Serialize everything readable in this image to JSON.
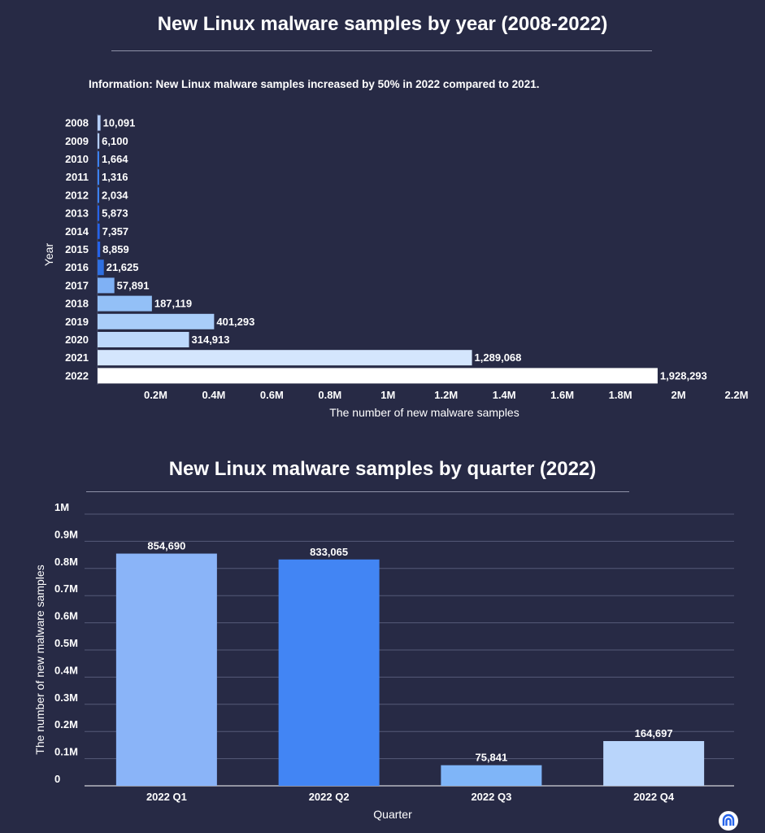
{
  "header": {
    "title": "New Linux malware samples by year (2008-2022)",
    "info": "Information: New Linux malware samples increased by 50% in  2022 compared to 2021."
  },
  "quarter_header": {
    "title": "New Linux malware samples by quarter (2022)"
  },
  "colors": {
    "background": "#272a45",
    "gridline": "#565a78"
  },
  "logo": {
    "icon": "brand-logo-icon"
  },
  "chart_data": [
    {
      "type": "bar",
      "orientation": "horizontal",
      "title": "New Linux malware samples by year (2008-2022)",
      "xlabel": "The number of new malware samples",
      "ylabel": "Year",
      "categories": [
        "2008",
        "2009",
        "2010",
        "2011",
        "2012",
        "2013",
        "2014",
        "2015",
        "2016",
        "2017",
        "2018",
        "2019",
        "2020",
        "2021",
        "2022"
      ],
      "values": [
        10091,
        6100,
        1664,
        1316,
        2034,
        5873,
        7357,
        8859,
        21625,
        57891,
        187119,
        401293,
        314913,
        1289068,
        1928293
      ],
      "value_labels": [
        "10,091",
        "6,100",
        "1,664",
        "1,316",
        "2,034",
        "5,873",
        "7,357",
        "8,859",
        "21,625",
        "57,891",
        "187,119",
        "401,293",
        "314,913",
        "1,289,068",
        "1,928,293"
      ],
      "colors": [
        "#b4cefa",
        "#b4cefa",
        "#3b82f6",
        "#3b82f6",
        "#3b82f6",
        "#2563eb",
        "#2563eb",
        "#2563eb",
        "#2f6fe0",
        "#7fb1f5",
        "#93c0f7",
        "#a9cdf9",
        "#bcd8fb",
        "#d4e6fd",
        "#ffffff"
      ],
      "xticks": [
        200000,
        400000,
        600000,
        800000,
        1000000,
        1200000,
        1400000,
        1600000,
        1800000,
        2000000,
        2200000
      ],
      "xtick_labels": [
        "0.2M",
        "0.4M",
        "0.6M",
        "0.8M",
        "1M",
        "1.2M",
        "1.4M",
        "1.6M",
        "1.8M",
        "2M",
        "2.2M"
      ],
      "xlim": [
        0,
        2200000
      ],
      "grid": false
    },
    {
      "type": "bar",
      "orientation": "vertical",
      "title": "New Linux malware samples by quarter (2022)",
      "xlabel": "Quarter",
      "ylabel": "The number of new malware samples",
      "categories": [
        "2022 Q1",
        "2022 Q2",
        "2022 Q3",
        "2022 Q4"
      ],
      "values": [
        854690,
        833065,
        75841,
        164697
      ],
      "value_labels": [
        "854,690",
        "833,065",
        "75,841",
        "164,697"
      ],
      "colors": [
        "#8ab4f8",
        "#4285f4",
        "#7fb5f8",
        "#b9d5fb"
      ],
      "yticks": [
        0,
        100000,
        200000,
        300000,
        400000,
        500000,
        600000,
        700000,
        800000,
        900000,
        1000000
      ],
      "ytick_labels": [
        "0",
        "0.1M",
        "0.2M",
        "0.3M",
        "0.4M",
        "0.5M",
        "0.6M",
        "0.7M",
        "0.8M",
        "0.9M",
        "1M"
      ],
      "ylim": [
        0,
        1000000
      ],
      "grid": true
    }
  ]
}
